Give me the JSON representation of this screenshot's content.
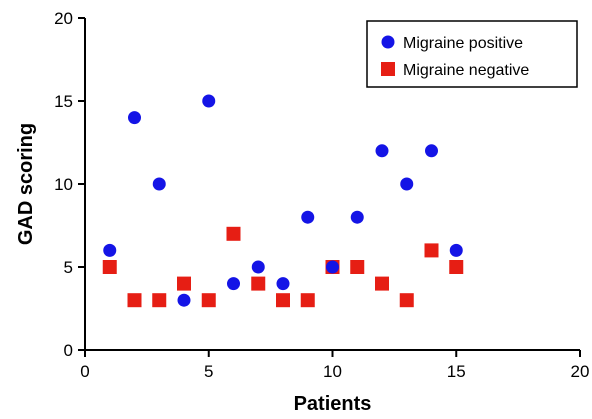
{
  "colors": {
    "positive": "#1414e6",
    "negative": "#e61e14",
    "axis": "#000000"
  },
  "chart_data": {
    "type": "scatter",
    "title": "",
    "xlabel": "Patients",
    "ylabel": "GAD scoring",
    "xlim": [
      0,
      20
    ],
    "ylim": [
      0,
      20
    ],
    "xticks": [
      0,
      5,
      10,
      15,
      20
    ],
    "yticks": [
      0,
      5,
      10,
      15,
      20
    ],
    "grid": false,
    "legend_position": "top-right",
    "series": [
      {
        "name": "Migraine positive",
        "marker": "circle",
        "points": [
          {
            "x": 1,
            "y": 6
          },
          {
            "x": 2,
            "y": 14
          },
          {
            "x": 3,
            "y": 10
          },
          {
            "x": 4,
            "y": 3
          },
          {
            "x": 5,
            "y": 15
          },
          {
            "x": 6,
            "y": 4
          },
          {
            "x": 7,
            "y": 5
          },
          {
            "x": 8,
            "y": 4
          },
          {
            "x": 9,
            "y": 8
          },
          {
            "x": 10,
            "y": 5
          },
          {
            "x": 11,
            "y": 8
          },
          {
            "x": 12,
            "y": 12
          },
          {
            "x": 13,
            "y": 10
          },
          {
            "x": 14,
            "y": 12
          },
          {
            "x": 15,
            "y": 6
          }
        ]
      },
      {
        "name": "Migraine negative",
        "marker": "square",
        "points": [
          {
            "x": 1,
            "y": 5
          },
          {
            "x": 2,
            "y": 3
          },
          {
            "x": 3,
            "y": 3
          },
          {
            "x": 4,
            "y": 4
          },
          {
            "x": 5,
            "y": 3
          },
          {
            "x": 6,
            "y": 7
          },
          {
            "x": 7,
            "y": 4
          },
          {
            "x": 8,
            "y": 3
          },
          {
            "x": 9,
            "y": 3
          },
          {
            "x": 10,
            "y": 5
          },
          {
            "x": 11,
            "y": 5
          },
          {
            "x": 12,
            "y": 4
          },
          {
            "x": 13,
            "y": 3
          },
          {
            "x": 14,
            "y": 6
          },
          {
            "x": 15,
            "y": 5
          }
        ]
      }
    ]
  }
}
